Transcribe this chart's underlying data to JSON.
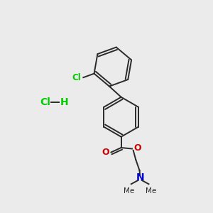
{
  "background_color": "#ebebeb",
  "bond_color": "#2a2a2a",
  "cl_color": "#00cc00",
  "o_color": "#cc0000",
  "n_color": "#0000cc",
  "hcl_cl_color": "#00cc00",
  "hcl_h_color": "#00cc00",
  "cl_label": "Cl",
  "o_label": "O",
  "n_label": "N",
  "hcl_cl_label": "Cl",
  "hcl_h_label": "H"
}
